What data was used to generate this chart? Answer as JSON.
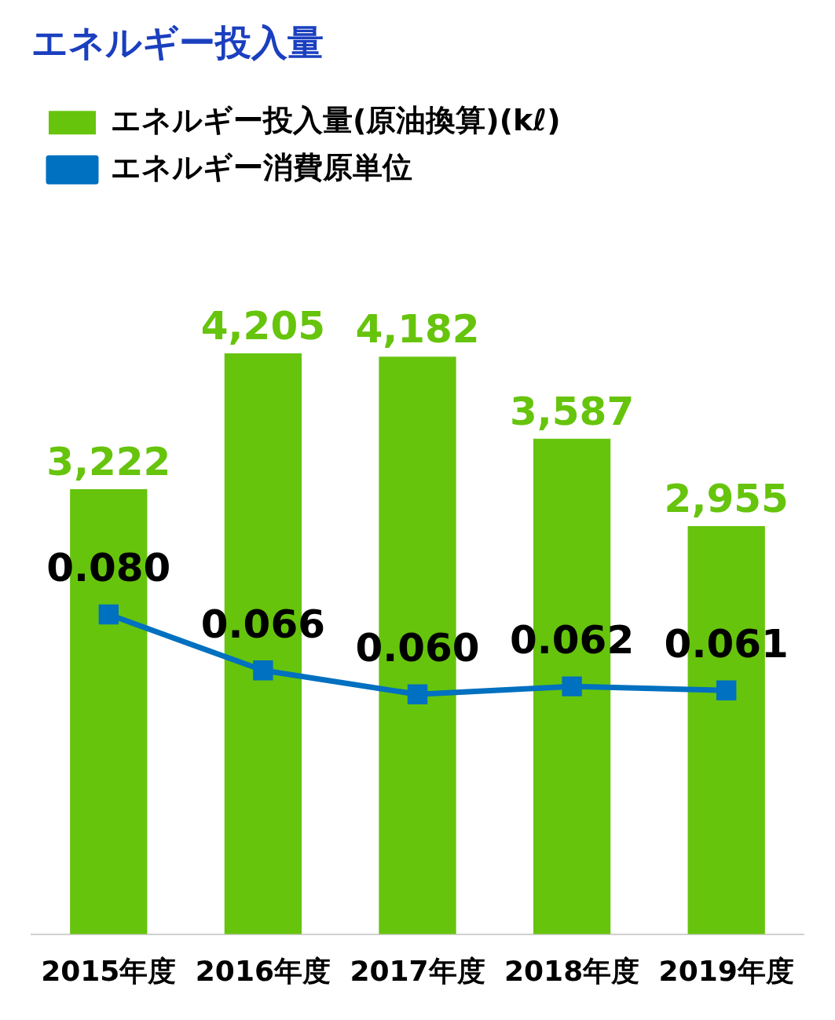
{
  "chart_data": {
    "type": "bar",
    "title": "エネルギー投入量",
    "categories": [
      "2015年度",
      "2016年度",
      "2017年度",
      "2018年度",
      "2019年度"
    ],
    "series": [
      {
        "name": "エネルギー投入量(原油換算)(kℓ)",
        "type": "bar",
        "color": "#66c40c",
        "values": [
          3222,
          4205,
          4182,
          3587,
          2955
        ],
        "value_labels": [
          "3,222",
          "4,205",
          "4,182",
          "3,587",
          "2,955"
        ]
      },
      {
        "name": "エネルギー消費原単位",
        "type": "line",
        "axis": "y2",
        "color": "#0070c0",
        "values": [
          0.08,
          0.066,
          0.06,
          0.062,
          0.061
        ],
        "value_labels": [
          "0.080",
          "0.066",
          "0.060",
          "0.062",
          "0.061"
        ]
      }
    ],
    "legend": "top left",
    "grid": false,
    "marker": "square",
    "line_style": "solid"
  }
}
